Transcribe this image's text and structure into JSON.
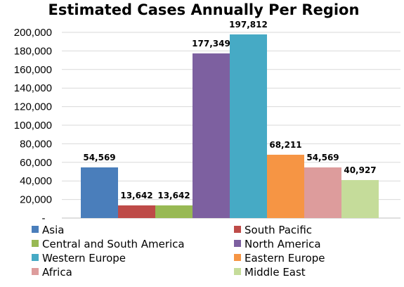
{
  "chart_data": {
    "type": "bar",
    "title": "Estimated Cases Annually Per Region",
    "xlabel": "",
    "ylabel": "",
    "ylim": [
      0,
      200000
    ],
    "ytick_labels": [
      "-",
      "20,000",
      "40,000",
      "60,000",
      "80,000",
      "100,000",
      "120,000",
      "140,000",
      "160,000",
      "180,000",
      "200,000"
    ],
    "grid": true,
    "legend_position": "bottom",
    "series": [
      {
        "name": "Asia",
        "value": 54569,
        "label": "54,569",
        "color": "#4a7ebb"
      },
      {
        "name": "South Pacific",
        "value": 13642,
        "label": "13,642",
        "color": "#be4b48"
      },
      {
        "name": "Central and South America",
        "value": 13642,
        "label": "13,642",
        "color": "#98b954"
      },
      {
        "name": "North America",
        "value": 177349,
        "label": "177,349",
        "color": "#7d60a0"
      },
      {
        "name": "Western Europe",
        "value": 197812,
        "label": "197,812",
        "color": "#46aac5"
      },
      {
        "name": "Eastern Europe",
        "value": 68211,
        "label": "68,211",
        "color": "#f69544"
      },
      {
        "name": "Africa",
        "value": 54569,
        "label": "54,569",
        "color": "#dd9c9c"
      },
      {
        "name": "Middle East",
        "value": 40927,
        "label": "40,927",
        "color": "#c5dc9a"
      }
    ]
  }
}
